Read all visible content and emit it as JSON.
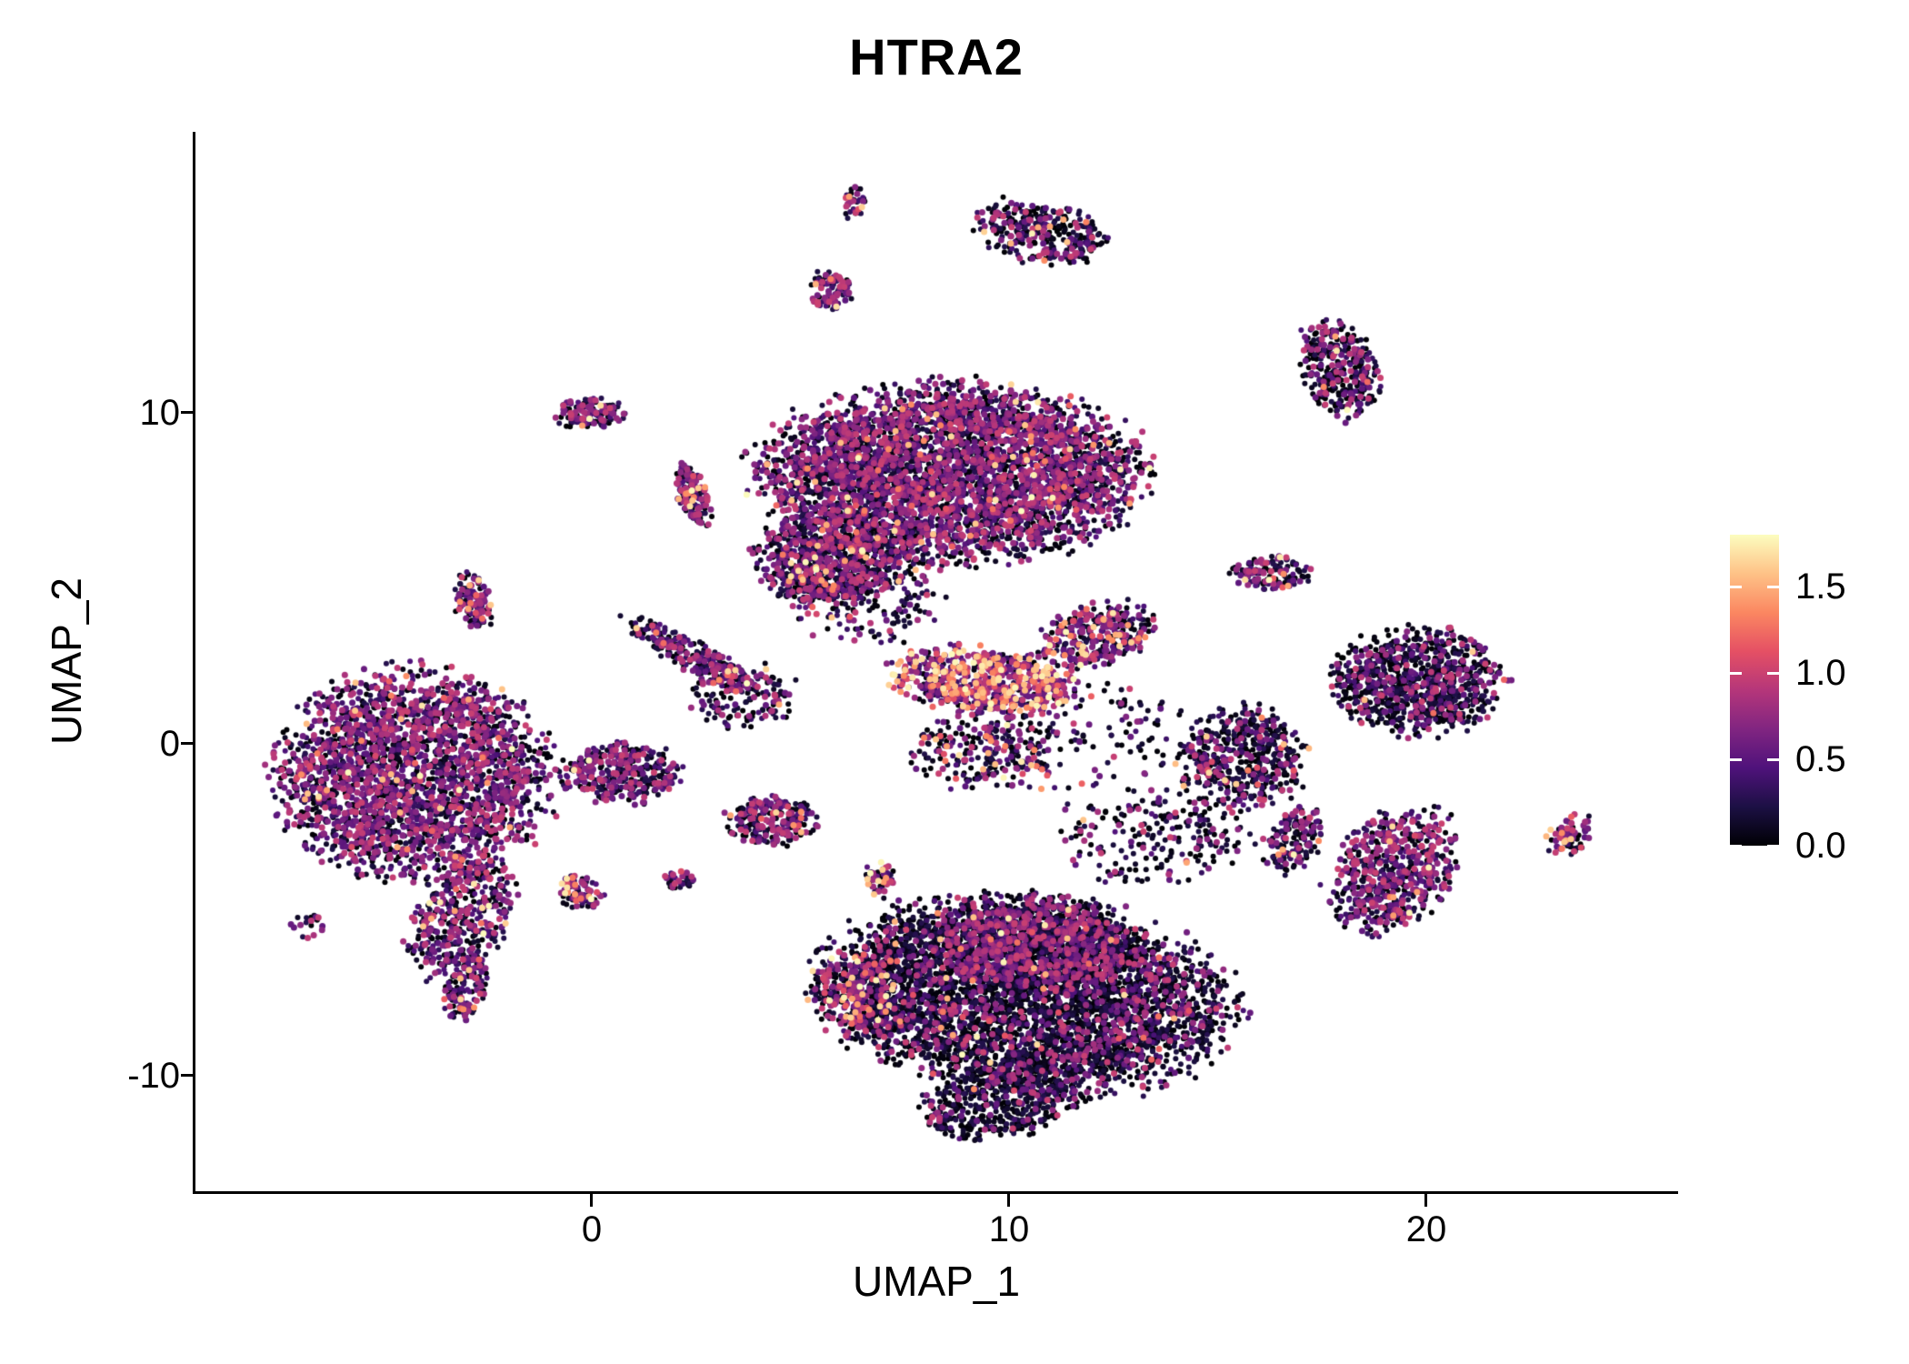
{
  "title": "HTRA2",
  "axes": {
    "x": {
      "label": "UMAP_1",
      "tick_labels": [
        "0",
        "10",
        "20"
      ]
    },
    "y": {
      "label": "UMAP_2",
      "tick_labels": [
        "10",
        "0",
        "-10"
      ]
    }
  },
  "legend": {
    "ticks": [
      "1.5",
      "1.0",
      "0.5",
      "0.0"
    ],
    "tick_values": [
      1.5,
      1.0,
      0.5,
      0.0
    ],
    "colormap_stops": [
      "#000004",
      "#1C1044",
      "#4F127B",
      "#812581",
      "#B5367A",
      "#E55064",
      "#FB8761",
      "#FEC287",
      "#FCFDBF"
    ]
  },
  "chart_data": {
    "type": "scatter",
    "title": "HTRA2",
    "xlabel": "UMAP_1",
    "ylabel": "UMAP_2",
    "xlim": [
      -9.5,
      26
    ],
    "ylim": [
      -13.5,
      18.5
    ],
    "x_ticks": [
      0,
      10,
      20
    ],
    "y_ticks": [
      -10,
      0,
      10
    ],
    "grid": false,
    "legend_position": "right",
    "colorbar": {
      "label_values": [
        0.0,
        0.5,
        1.0,
        1.5
      ],
      "max": 1.8,
      "palette": "magma"
    },
    "point_radius_px": 3,
    "clusters": [
      {
        "name": "left-main",
        "cx": -4.3,
        "cy": -0.9,
        "rx": 3.1,
        "ry": 2.9,
        "rot": 0,
        "n": 2600,
        "warm": 0.02,
        "mid": 0.55
      },
      {
        "name": "left-tail",
        "cx": -3.1,
        "cy": -5.2,
        "rx": 1.1,
        "ry": 1.9,
        "rot": -20,
        "n": 450,
        "warm": 0.03,
        "mid": 0.5
      },
      {
        "name": "left-tail-tip",
        "cx": -3.0,
        "cy": -7.4,
        "rx": 0.5,
        "ry": 0.9,
        "rot": -15,
        "n": 120,
        "warm": 0.06,
        "mid": 0.5
      },
      {
        "name": "left-bridge",
        "cx": 0.7,
        "cy": -0.9,
        "rx": 1.4,
        "ry": 0.9,
        "rot": 0,
        "n": 350,
        "warm": 0.02,
        "mid": 0.5
      },
      {
        "name": "top-left-small",
        "cx": -0.1,
        "cy": 10.0,
        "rx": 0.8,
        "ry": 0.45,
        "rot": 0,
        "n": 130,
        "warm": 0.05,
        "mid": 0.55
      },
      {
        "name": "streak-upper-left",
        "cx": 2.4,
        "cy": 7.5,
        "rx": 0.35,
        "ry": 1.0,
        "rot": 15,
        "n": 140,
        "warm": 0.12,
        "mid": 0.5
      },
      {
        "name": "small-left-mid",
        "cx": -2.8,
        "cy": 4.3,
        "rx": 0.45,
        "ry": 0.8,
        "rot": 10,
        "n": 110,
        "warm": 0.08,
        "mid": 0.5
      },
      {
        "name": "top-main",
        "cx": 8.6,
        "cy": 8.2,
        "rx": 4.3,
        "ry": 2.5,
        "rot": 0,
        "n": 4200,
        "warm": 0.025,
        "mid": 0.5
      },
      {
        "name": "top-main-lower",
        "cx": 5.6,
        "cy": 5.6,
        "rx": 1.6,
        "ry": 1.3,
        "rot": 0,
        "n": 700,
        "warm": 0.03,
        "mid": 0.45
      },
      {
        "name": "diag-streak",
        "cx": 2.5,
        "cy": 2.6,
        "rx": 0.4,
        "ry": 1.9,
        "rot": 55,
        "n": 260,
        "warm": 0.03,
        "mid": 0.45
      },
      {
        "name": "tiny-top",
        "cx": 6.3,
        "cy": 16.3,
        "rx": 0.3,
        "ry": 0.5,
        "rot": 0,
        "n": 35,
        "warm": 0.15,
        "mid": 0.4
      },
      {
        "name": "small-top",
        "cx": 5.7,
        "cy": 13.7,
        "rx": 0.5,
        "ry": 0.6,
        "rot": 0,
        "n": 90,
        "warm": 0.05,
        "mid": 0.55
      },
      {
        "name": "top-right-hook",
        "cx": 10.8,
        "cy": 15.5,
        "rx": 1.5,
        "ry": 0.9,
        "rot": -15,
        "n": 320,
        "warm": 0.03,
        "mid": 0.35
      },
      {
        "name": "mid-pink-band",
        "cx": 9.4,
        "cy": 1.9,
        "rx": 2.1,
        "ry": 0.95,
        "rot": -8,
        "n": 650,
        "warm": 0.3,
        "mid": 0.5
      },
      {
        "name": "mid-band-right",
        "cx": 12.1,
        "cy": 3.3,
        "rx": 1.4,
        "ry": 0.85,
        "rot": 20,
        "n": 330,
        "warm": 0.12,
        "mid": 0.45
      },
      {
        "name": "mid-scatter-below",
        "cx": 9.3,
        "cy": -0.2,
        "rx": 1.6,
        "ry": 1.1,
        "rot": 0,
        "n": 220,
        "warm": 0.12,
        "mid": 0.35
      },
      {
        "name": "right-top",
        "cx": 17.9,
        "cy": 11.3,
        "rx": 0.85,
        "ry": 1.5,
        "rot": 15,
        "n": 330,
        "warm": 0.02,
        "mid": 0.4
      },
      {
        "name": "right-small-mid",
        "cx": 16.3,
        "cy": 5.2,
        "rx": 0.9,
        "ry": 0.5,
        "rot": 0,
        "n": 130,
        "warm": 0.03,
        "mid": 0.5
      },
      {
        "name": "right-main",
        "cx": 19.8,
        "cy": 1.9,
        "rx": 1.9,
        "ry": 1.5,
        "rot": 0,
        "n": 950,
        "warm": 0.01,
        "mid": 0.3
      },
      {
        "name": "right-mid-blob",
        "cx": 15.6,
        "cy": -0.4,
        "rx": 1.4,
        "ry": 1.5,
        "rot": 0,
        "n": 520,
        "warm": 0.02,
        "mid": 0.3
      },
      {
        "name": "right-arm",
        "cx": 16.8,
        "cy": -2.9,
        "rx": 0.6,
        "ry": 1.0,
        "rot": -25,
        "n": 150,
        "warm": 0.05,
        "mid": 0.4
      },
      {
        "name": "right-lower",
        "cx": 19.2,
        "cy": -3.8,
        "rx": 1.3,
        "ry": 1.9,
        "rot": -30,
        "n": 620,
        "warm": 0.02,
        "mid": 0.55
      },
      {
        "name": "far-right-tiny",
        "cx": 23.4,
        "cy": -2.8,
        "rx": 0.45,
        "ry": 0.7,
        "rot": -30,
        "n": 70,
        "warm": 0.12,
        "mid": 0.5
      },
      {
        "name": "bottom-main",
        "cx": 10.4,
        "cy": -7.6,
        "rx": 4.6,
        "ry": 2.7,
        "rot": -8,
        "n": 4600,
        "warm": 0.01,
        "mid": 0.22
      },
      {
        "name": "bottom-purple",
        "cx": 10.6,
        "cy": -6.0,
        "rx": 2.2,
        "ry": 1.4,
        "rot": 0,
        "n": 900,
        "warm": 0.01,
        "mid": 0.5
      },
      {
        "name": "bottom-left-warm",
        "cx": 6.4,
        "cy": -7.6,
        "rx": 1.1,
        "ry": 1.3,
        "rot": 0,
        "n": 260,
        "warm": 0.18,
        "mid": 0.45
      },
      {
        "name": "bottom-tail",
        "cx": 9.8,
        "cy": -10.8,
        "rx": 1.8,
        "ry": 1.0,
        "rot": 10,
        "n": 500,
        "warm": 0.005,
        "mid": 0.15
      },
      {
        "name": "mid-small-1",
        "cx": 4.3,
        "cy": -2.3,
        "rx": 1.0,
        "ry": 0.7,
        "rot": 0,
        "n": 260,
        "warm": 0.06,
        "mid": 0.4
      },
      {
        "name": "mid-small-2",
        "cx": 6.9,
        "cy": -4.1,
        "rx": 0.35,
        "ry": 0.5,
        "rot": 0,
        "n": 60,
        "warm": 0.15,
        "mid": 0.4
      },
      {
        "name": "mid-tiny-1",
        "cx": 2.1,
        "cy": -4.1,
        "rx": 0.35,
        "ry": 0.3,
        "rot": 0,
        "n": 40,
        "warm": 0.05,
        "mid": 0.4
      },
      {
        "name": "mid-tiny-2",
        "cx": -0.3,
        "cy": -4.5,
        "rx": 0.55,
        "ry": 0.5,
        "rot": 0,
        "n": 90,
        "warm": 0.1,
        "mid": 0.5
      },
      {
        "name": "left-edge-dots",
        "cx": -6.8,
        "cy": -5.5,
        "rx": 0.4,
        "ry": 0.4,
        "rot": 0,
        "n": 18,
        "warm": 0.0,
        "mid": 0.3
      },
      {
        "name": "sparse-mid",
        "cx": 11.5,
        "cy": 0.3,
        "rx": 2.6,
        "ry": 1.6,
        "rot": 0,
        "n": 160,
        "warm": 0.05,
        "mid": 0.3
      },
      {
        "name": "sparse-top-gap",
        "cx": 6.5,
        "cy": 4.6,
        "rx": 1.8,
        "ry": 1.6,
        "rot": 0,
        "n": 260,
        "warm": 0.04,
        "mid": 0.4
      },
      {
        "name": "sparse-bottom-gap",
        "cx": 13.5,
        "cy": -2.8,
        "rx": 2.3,
        "ry": 1.4,
        "rot": 0,
        "n": 220,
        "warm": 0.02,
        "mid": 0.3
      },
      {
        "name": "mid-left-scatter",
        "cx": 3.6,
        "cy": 1.5,
        "rx": 1.2,
        "ry": 1.0,
        "rot": 0,
        "n": 150,
        "warm": 0.04,
        "mid": 0.4
      }
    ]
  }
}
